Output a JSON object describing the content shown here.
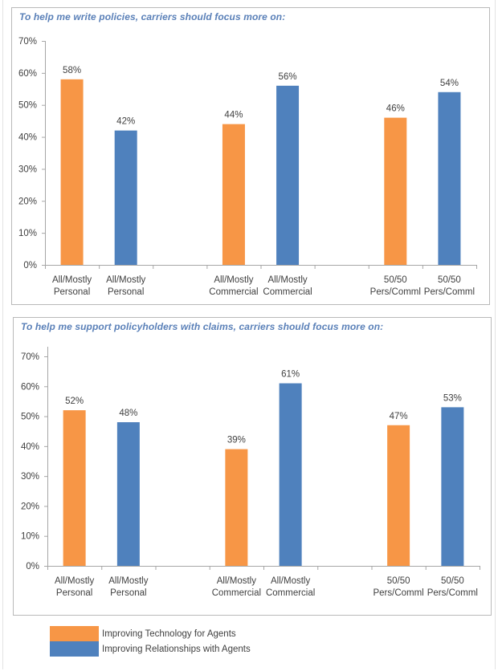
{
  "colors": {
    "technology": "#f79646",
    "relationships": "#4f81bd",
    "axis": "#a6a6a6",
    "title": "#5a80b8"
  },
  "legend": [
    {
      "name": "Improving Technology for Agents",
      "color": "#f79646"
    },
    {
      "name": "Improving Relationships with Agents",
      "color": "#4f81bd"
    }
  ],
  "chart_data": [
    {
      "type": "bar",
      "title": "To help me write policies, carriers should focus more on:",
      "xlabel": "",
      "ylabel": "",
      "ylim": [
        0,
        70
      ],
      "yticks": [
        "0%",
        "10%",
        "20%",
        "30%",
        "40%",
        "50%",
        "60%",
        "70%"
      ],
      "grid": false,
      "categories": [
        [
          "All/Mostly",
          "Personal"
        ],
        [
          "All/Mostly",
          "Personal"
        ],
        [
          "",
          ""
        ],
        [
          "All/Mostly",
          "Commercial"
        ],
        [
          "All/Mostly",
          "Commercial"
        ],
        [
          "",
          ""
        ],
        [
          "50/50",
          "Pers/Comml"
        ],
        [
          "50/50",
          "Pers/Comml"
        ]
      ],
      "bars": [
        {
          "category_index": 0,
          "series": "Improving Technology for Agents",
          "value": 58,
          "label": "58%"
        },
        {
          "category_index": 1,
          "series": "Improving Relationships with Agents",
          "value": 42,
          "label": "42%"
        },
        {
          "category_index": 3,
          "series": "Improving Technology for Agents",
          "value": 44,
          "label": "44%"
        },
        {
          "category_index": 4,
          "series": "Improving Relationships with Agents",
          "value": 56,
          "label": "56%"
        },
        {
          "category_index": 6,
          "series": "Improving Technology for Agents",
          "value": 46,
          "label": "46%"
        },
        {
          "category_index": 7,
          "series": "Improving Relationships with Agents",
          "value": 54,
          "label": "54%"
        }
      ]
    },
    {
      "type": "bar",
      "title": "To help me support policyholders with claims, carriers should focus more on:",
      "xlabel": "",
      "ylabel": "",
      "ylim": [
        0,
        70
      ],
      "yticks": [
        "0%",
        "10%",
        "20%",
        "30%",
        "40%",
        "50%",
        "60%",
        "70%"
      ],
      "grid": false,
      "categories": [
        [
          "All/Mostly",
          "Personal"
        ],
        [
          "All/Mostly",
          "Personal"
        ],
        [
          "",
          ""
        ],
        [
          "All/Mostly",
          "Commercial"
        ],
        [
          "All/Mostly",
          "Commercial"
        ],
        [
          "",
          ""
        ],
        [
          "50/50",
          "Pers/Comml"
        ],
        [
          "50/50",
          "Pers/Comml"
        ]
      ],
      "bars": [
        {
          "category_index": 0,
          "series": "Improving Technology for Agents",
          "value": 52,
          "label": "52%"
        },
        {
          "category_index": 1,
          "series": "Improving Relationships with Agents",
          "value": 48,
          "label": "48%"
        },
        {
          "category_index": 3,
          "series": "Improving Technology for Agents",
          "value": 39,
          "label": "39%"
        },
        {
          "category_index": 4,
          "series": "Improving Relationships with Agents",
          "value": 61,
          "label": "61%"
        },
        {
          "category_index": 6,
          "series": "Improving Technology for Agents",
          "value": 47,
          "label": "47%"
        },
        {
          "category_index": 7,
          "series": "Improving Relationships with Agents",
          "value": 53,
          "label": "53%"
        }
      ]
    }
  ]
}
